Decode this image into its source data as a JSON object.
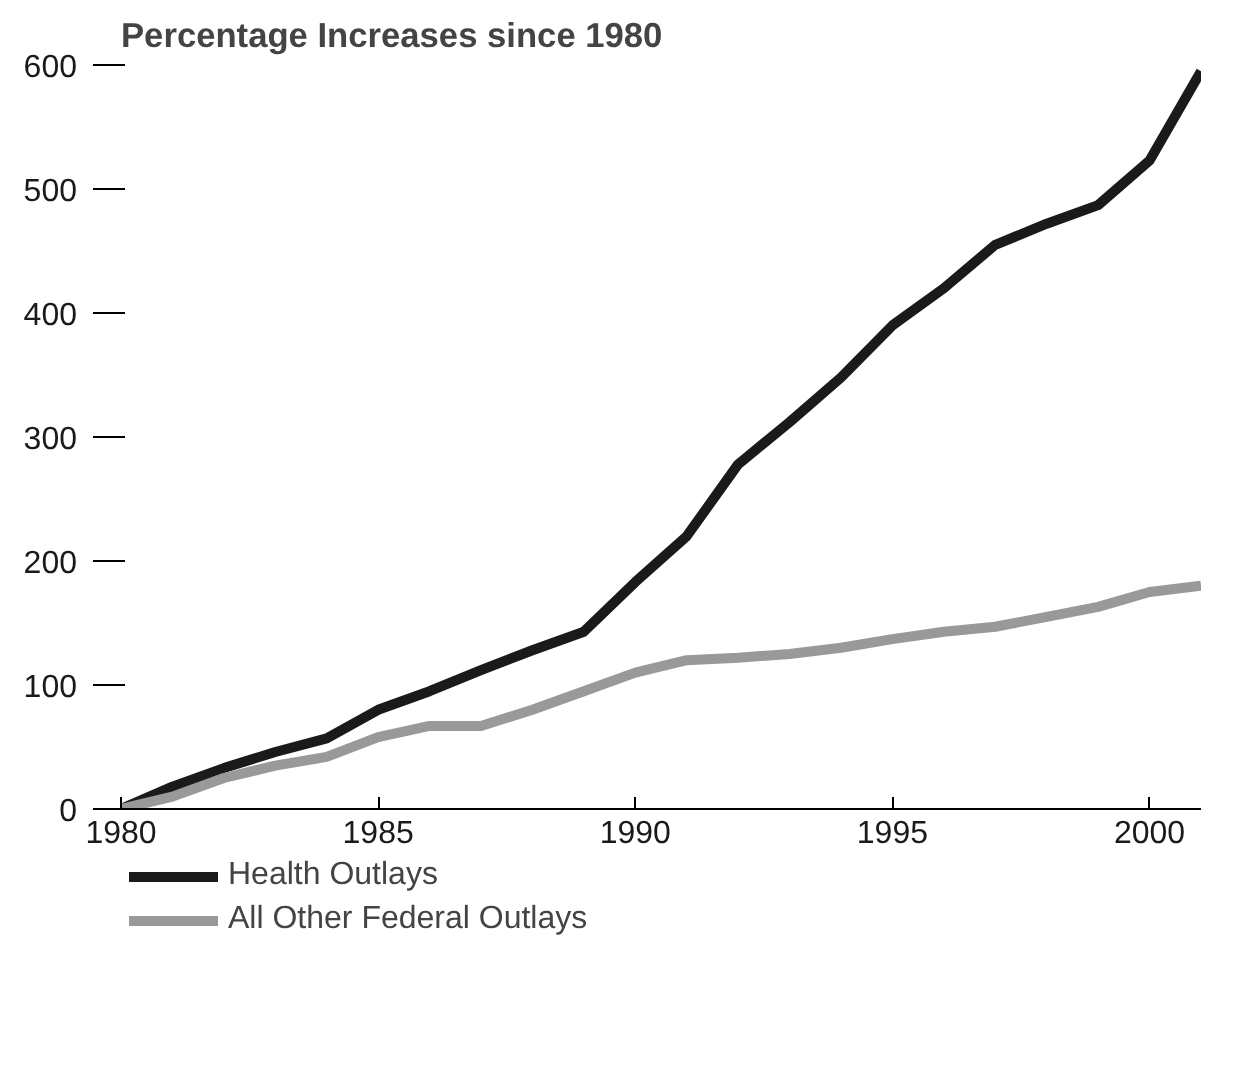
{
  "chart_data": {
    "type": "line",
    "title": "Percentage Increases since 1980",
    "x": [
      1980,
      1981,
      1982,
      1983,
      1984,
      1985,
      1986,
      1987,
      1988,
      1989,
      1990,
      1991,
      1992,
      1993,
      1994,
      1995,
      1996,
      1997,
      1998,
      1999,
      2000,
      2001
    ],
    "series": [
      {
        "name": "Health Outlays",
        "color": "#1a1a1a",
        "values": [
          0,
          18,
          33,
          46,
          57,
          80,
          95,
          112,
          128,
          143,
          183,
          220,
          278,
          312,
          348,
          390,
          420,
          455,
          472,
          487,
          523,
          595
        ]
      },
      {
        "name": "All Other Federal Outlays",
        "color": "#999999",
        "values": [
          0,
          10,
          25,
          35,
          42,
          58,
          67,
          67,
          80,
          95,
          110,
          120,
          122,
          125,
          130,
          137,
          143,
          147,
          155,
          163,
          175,
          180
        ]
      }
    ],
    "xlim": [
      1980,
      2001
    ],
    "ylim": [
      0,
      600
    ],
    "xticks": [
      1980,
      1985,
      1990,
      1995,
      2000
    ],
    "yticks": [
      0,
      100,
      200,
      300,
      400,
      500,
      600
    ],
    "grid": false,
    "legend": "bottom left",
    "marker": "none",
    "line_style": "solid"
  }
}
